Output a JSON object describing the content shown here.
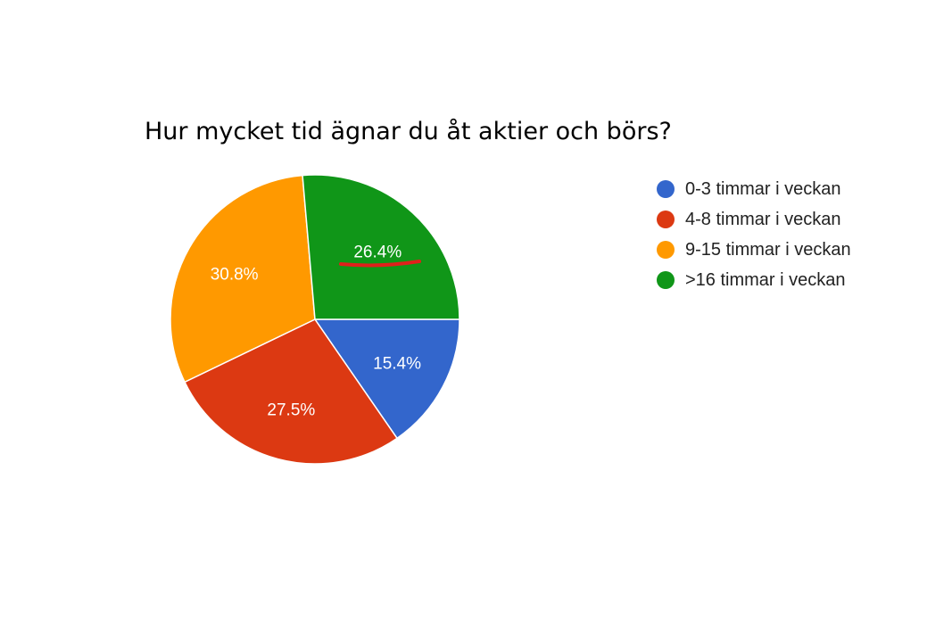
{
  "chart_data": {
    "type": "pie",
    "title": "Hur mycket tid ägnar du åt aktier och börs?",
    "categories": [
      "0-3 timmar i veckan",
      "4-8 timmar i veckan",
      "9-15 timmar i veckan",
      ">16 timmar i veckan"
    ],
    "values": [
      15.4,
      27.5,
      30.8,
      26.4
    ],
    "value_labels": [
      "15.4%",
      "27.5%",
      "30.8%",
      "26.4%"
    ],
    "colors": [
      "#3366cc",
      "#dc3912",
      "#ff9900",
      "#109618"
    ],
    "legend_position": "right",
    "annotation": {
      "type": "red underline",
      "target": "26.4%",
      "color": "#e0201b"
    }
  }
}
